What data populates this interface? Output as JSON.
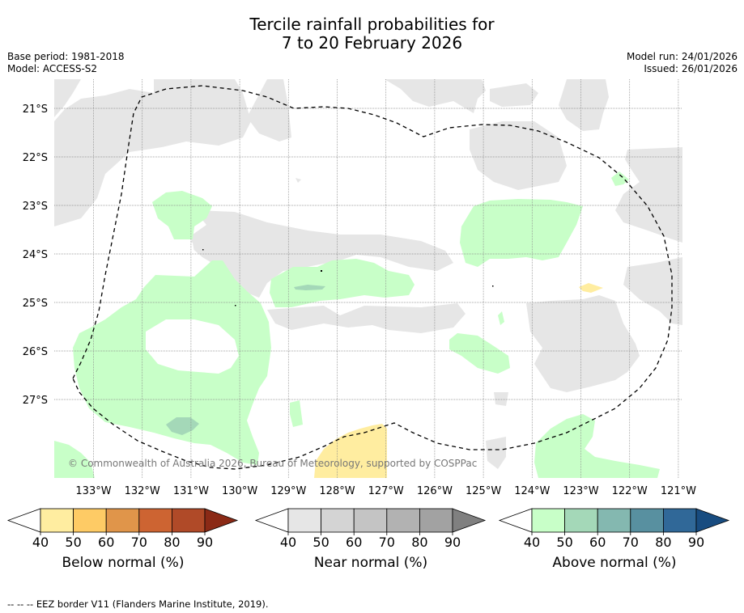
{
  "title_line1": "Tercile rainfall probabilities for",
  "title_line2": "7 to 20 February 2026",
  "base_period": "Base period: 1981-2018",
  "model": "Model: ACCESS-S2",
  "model_run": "Model run: 24/01/2026",
  "issued": "Issued: 26/01/2026",
  "map": {
    "lat_labels": [
      "21°S",
      "22°S",
      "23°S",
      "24°S",
      "25°S",
      "26°S",
      "27°S"
    ],
    "lon_labels": [
      "133°W",
      "132°W",
      "131°W",
      "130°W",
      "129°W",
      "128°W",
      "127°W",
      "126°W",
      "125°W",
      "124°W",
      "123°W",
      "122°W",
      "121°W"
    ],
    "copyright": "© Commonwealth of Australia 2026, Bureau of Meteorology, supported by COSPPac",
    "boundary": "EEZ border"
  },
  "colorbars": [
    {
      "name": "below",
      "label": "Below normal (%)",
      "ticks": [
        "40",
        "50",
        "60",
        "70",
        "80",
        "90"
      ],
      "colors": [
        "#ffffff",
        "#ffeda0",
        "#fecb65",
        "#e0954a",
        "#cd6432",
        "#b04a28",
        "#8b2a16"
      ]
    },
    {
      "name": "near",
      "label": "Near normal (%)",
      "ticks": [
        "40",
        "50",
        "60",
        "70",
        "80",
        "90"
      ],
      "colors": [
        "#ffffff",
        "#e6e6e6",
        "#d4d4d4",
        "#c4c4c4",
        "#b2b2b2",
        "#a2a2a2",
        "#808080"
      ]
    },
    {
      "name": "above",
      "label": "Above normal (%)",
      "ticks": [
        "40",
        "50",
        "60",
        "70",
        "80",
        "90"
      ],
      "colors": [
        "#ffffff",
        "#c8ffc8",
        "#a4d8b8",
        "#84b8b0",
        "#5890a0",
        "#306898",
        "#184c80"
      ]
    }
  ],
  "footer": "--  --  -- EEZ border V11 (Flanders Marine Institute, 2019)."
}
